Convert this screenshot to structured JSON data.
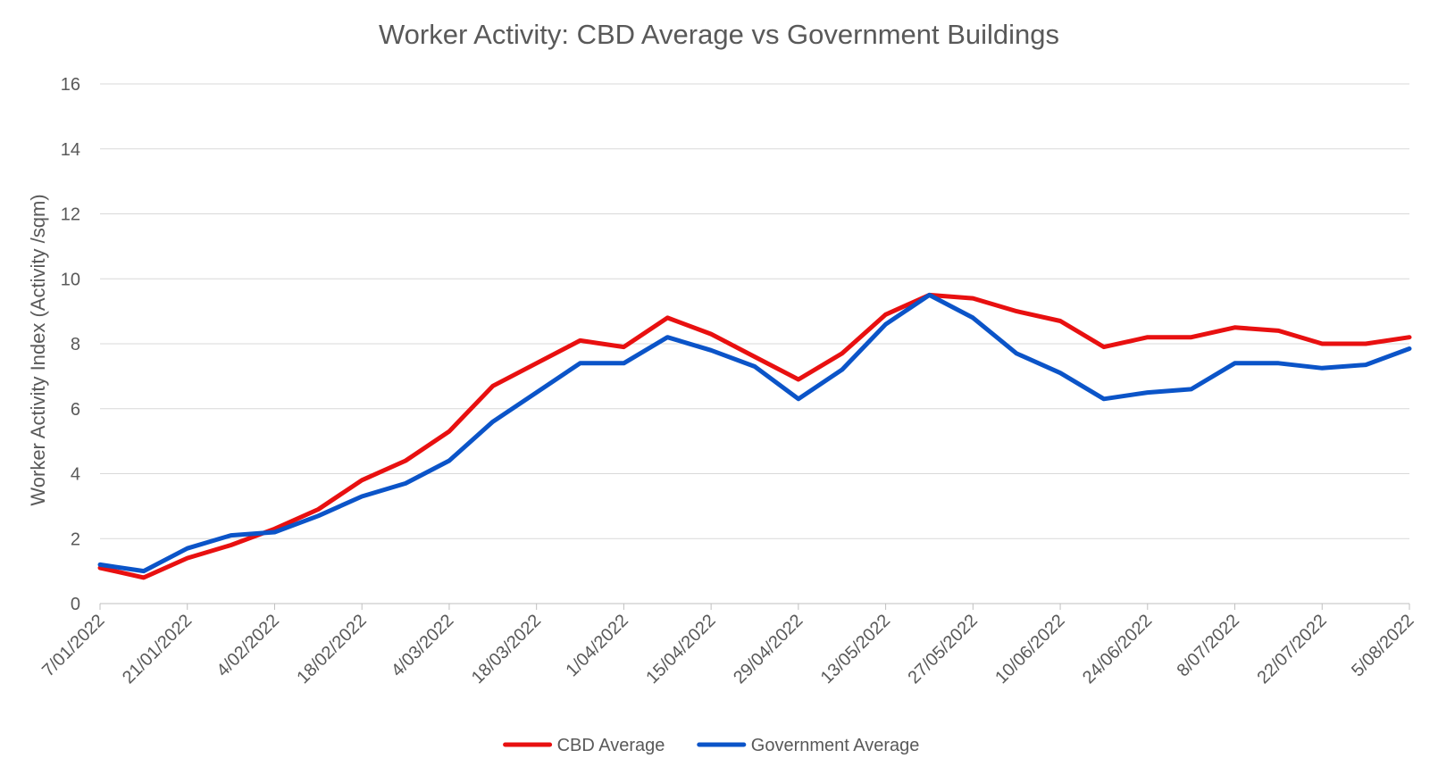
{
  "chart_data": {
    "type": "line",
    "title": "Worker Activity: CBD Average vs Government Buildings",
    "ylabel": "Worker Activity Index (Activity /sqm)",
    "xlabel": "",
    "ylim": [
      0,
      16
    ],
    "yticks": [
      0,
      2,
      4,
      6,
      8,
      10,
      12,
      14,
      16
    ],
    "grid": true,
    "legend_position": "bottom",
    "x": [
      "7/01/2022",
      "14/01/2022",
      "21/01/2022",
      "28/01/2022",
      "4/02/2022",
      "11/02/2022",
      "18/02/2022",
      "25/02/2022",
      "4/03/2022",
      "11/03/2022",
      "18/03/2022",
      "25/03/2022",
      "1/04/2022",
      "8/04/2022",
      "15/04/2022",
      "22/04/2022",
      "29/04/2022",
      "6/05/2022",
      "13/05/2022",
      "20/05/2022",
      "27/05/2022",
      "3/06/2022",
      "10/06/2022",
      "17/06/2022",
      "24/06/2022",
      "1/07/2022",
      "8/07/2022",
      "15/07/2022",
      "22/07/2022",
      "29/07/2022",
      "5/08/2022"
    ],
    "tick_labels": [
      "7/01/2022",
      "21/01/2022",
      "4/02/2022",
      "18/02/2022",
      "4/03/2022",
      "18/03/2022",
      "1/04/2022",
      "15/04/2022",
      "29/04/2022",
      "13/05/2022",
      "27/05/2022",
      "10/06/2022",
      "24/06/2022",
      "8/07/2022",
      "22/07/2022",
      "5/08/2022"
    ],
    "series": [
      {
        "name": "CBD Average",
        "color": "#e81010",
        "values": [
          1.1,
          0.8,
          1.4,
          1.8,
          2.3,
          2.9,
          3.8,
          4.4,
          5.3,
          6.7,
          7.4,
          8.1,
          7.9,
          8.8,
          8.3,
          7.6,
          6.9,
          7.7,
          8.9,
          9.5,
          9.4,
          9.0,
          8.7,
          7.9,
          8.2,
          8.2,
          8.5,
          8.4,
          8.0,
          8.0,
          8.2
        ]
      },
      {
        "name": "Government Average",
        "color": "#0b54c8",
        "values": [
          1.2,
          1.0,
          1.7,
          2.1,
          2.2,
          2.7,
          3.3,
          3.7,
          4.4,
          5.6,
          6.5,
          7.4,
          7.4,
          8.2,
          7.8,
          7.3,
          6.3,
          7.2,
          8.6,
          9.5,
          8.8,
          7.7,
          7.1,
          6.3,
          6.5,
          6.6,
          7.4,
          7.4,
          7.25,
          7.35,
          7.85
        ]
      }
    ]
  }
}
